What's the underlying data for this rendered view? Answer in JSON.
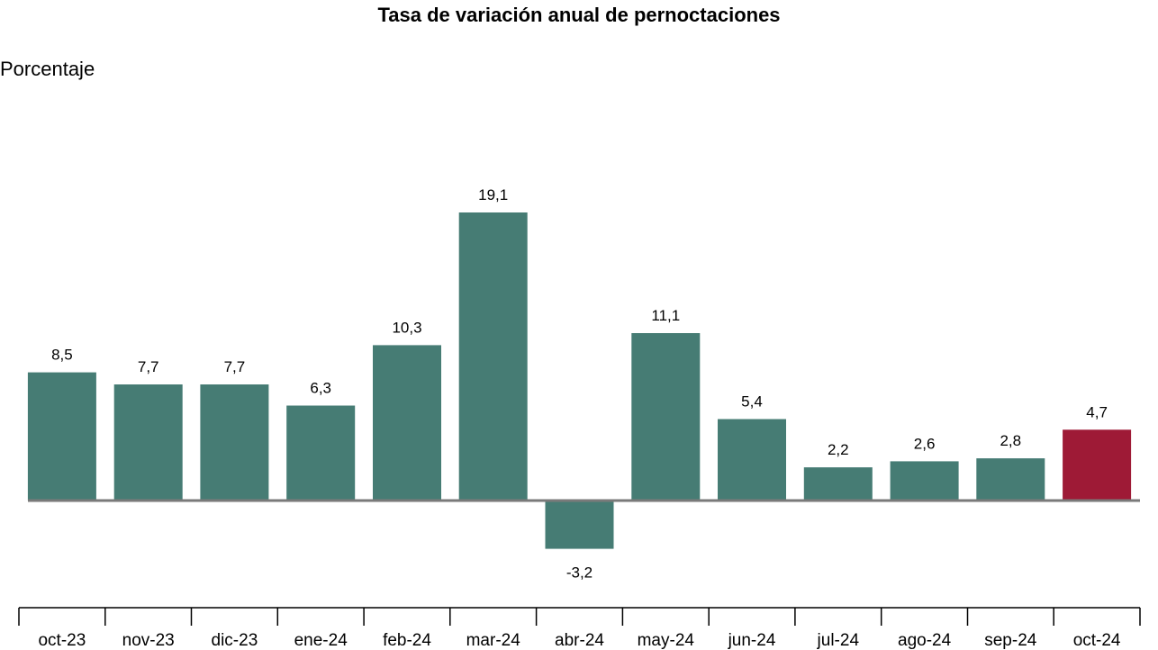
{
  "chart_data": {
    "type": "bar",
    "title": "Tasa de variación anual de pernoctaciones",
    "ylabel": "Porcentaje",
    "xlabel": "",
    "categories": [
      "oct-23",
      "nov-23",
      "dic-23",
      "ene-24",
      "feb-24",
      "mar-24",
      "abr-24",
      "may-24",
      "jun-24",
      "jul-24",
      "ago-24",
      "sep-24",
      "oct-24"
    ],
    "values": [
      8.5,
      7.7,
      7.7,
      6.3,
      10.3,
      19.1,
      -3.2,
      11.1,
      5.4,
      2.2,
      2.6,
      2.8,
      4.7
    ],
    "value_labels": [
      "8,5",
      "7,7",
      "7,7",
      "6,3",
      "10,3",
      "19,1",
      "-3,2",
      "11,1",
      "5,4",
      "2,2",
      "2,6",
      "2,8",
      "4,7"
    ],
    "ylim": [
      -3.2,
      19.1
    ],
    "grid": false,
    "colors": {
      "bar": "#467c74",
      "highlight": "#9e1a36",
      "zero_line": "#7a7a7a",
      "axis": "#000000"
    },
    "highlight_index": 12
  }
}
